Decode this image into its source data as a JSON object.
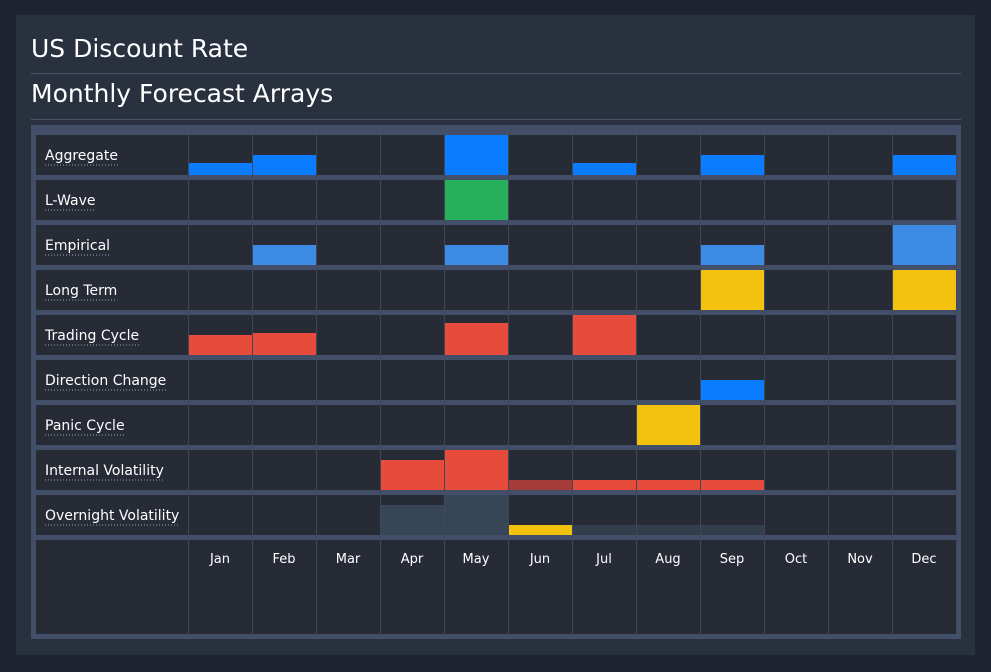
{
  "header": {
    "title": "US Discount Rate",
    "subtitle": "Monthly Forecast Arrays"
  },
  "colors": {
    "blue": "#0a7cff",
    "light_blue": "#3c8ce6",
    "green": "#26b05b",
    "yellow": "#f2c20f",
    "red": "#e64b3c",
    "dark_red": "#a53c39",
    "slate": "#364657",
    "slate_dark": "#333e4d",
    "frame": "#434f68",
    "cell": "#262b36",
    "grid": "#3f4759"
  },
  "chart_data": {
    "type": "heatmap",
    "title": "Monthly Forecast Arrays",
    "categories": [
      "Jan",
      "Feb",
      "Mar",
      "Apr",
      "May",
      "Jun",
      "Jul",
      "Aug",
      "Sep",
      "Oct",
      "Nov",
      "Dec"
    ],
    "ylim": [
      0,
      1
    ],
    "series": [
      {
        "name": "Aggregate",
        "values": [
          0.3,
          0.5,
          0,
          0,
          1.0,
          0,
          0.3,
          0,
          0.5,
          0,
          0,
          0.5
        ],
        "colors": [
          "blue",
          "blue",
          "blue",
          "blue",
          "blue",
          "blue",
          "blue",
          "blue",
          "blue",
          "blue",
          "blue",
          "blue"
        ]
      },
      {
        "name": "L-Wave",
        "values": [
          0,
          0,
          0,
          0,
          1.0,
          0,
          0,
          0,
          0,
          0,
          0,
          0
        ],
        "colors": [
          "green",
          "green",
          "green",
          "green",
          "green",
          "green",
          "green",
          "green",
          "green",
          "green",
          "green",
          "green"
        ]
      },
      {
        "name": "Empirical",
        "values": [
          0,
          0.5,
          0,
          0,
          0.5,
          0,
          0,
          0,
          0.5,
          0,
          0,
          1.0
        ],
        "colors": [
          "light_blue",
          "light_blue",
          "light_blue",
          "light_blue",
          "light_blue",
          "light_blue",
          "light_blue",
          "light_blue",
          "light_blue",
          "light_blue",
          "light_blue",
          "light_blue"
        ]
      },
      {
        "name": "Long Term",
        "values": [
          0,
          0,
          0,
          0,
          0,
          0,
          0,
          0,
          1.0,
          0,
          0,
          1.0
        ],
        "colors": [
          "yellow",
          "yellow",
          "yellow",
          "yellow",
          "yellow",
          "yellow",
          "yellow",
          "yellow",
          "yellow",
          "yellow",
          "yellow",
          "yellow"
        ]
      },
      {
        "name": "Trading Cycle",
        "values": [
          0.5,
          0.55,
          0,
          0,
          0.8,
          0,
          1.0,
          0,
          0,
          0,
          0,
          0
        ],
        "colors": [
          "red",
          "red",
          "red",
          "red",
          "red",
          "red",
          "red",
          "red",
          "red",
          "red",
          "red",
          "red"
        ]
      },
      {
        "name": "Direction Change",
        "values": [
          0,
          0,
          0,
          0,
          0,
          0,
          0,
          0,
          0.5,
          0,
          0,
          0
        ],
        "colors": [
          "blue",
          "blue",
          "blue",
          "blue",
          "blue",
          "blue",
          "blue",
          "blue",
          "blue",
          "blue",
          "blue",
          "blue"
        ]
      },
      {
        "name": "Panic Cycle",
        "values": [
          0,
          0,
          0,
          0,
          0,
          0,
          0,
          1.0,
          0,
          0,
          0,
          0
        ],
        "colors": [
          "yellow",
          "yellow",
          "yellow",
          "yellow",
          "yellow",
          "yellow",
          "yellow",
          "yellow",
          "yellow",
          "yellow",
          "yellow",
          "yellow"
        ]
      },
      {
        "name": "Internal Volatility",
        "values": [
          0,
          0,
          0,
          0.75,
          1.0,
          0.25,
          0.25,
          0.25,
          0.25,
          0,
          0,
          0
        ],
        "colors": [
          "red",
          "red",
          "red",
          "red",
          "red",
          "dark_red",
          "red",
          "red",
          "red",
          "red",
          "red",
          "red"
        ]
      },
      {
        "name": "Overnight Volatility",
        "values": [
          0,
          0,
          0,
          0.75,
          1.0,
          0.25,
          0.25,
          0.25,
          0.25,
          0,
          0,
          0
        ],
        "colors": [
          "slate",
          "slate",
          "slate",
          "slate",
          "slate",
          "yellow",
          "slate_dark",
          "slate_dark",
          "slate_dark",
          "slate",
          "slate",
          "slate"
        ]
      }
    ]
  }
}
